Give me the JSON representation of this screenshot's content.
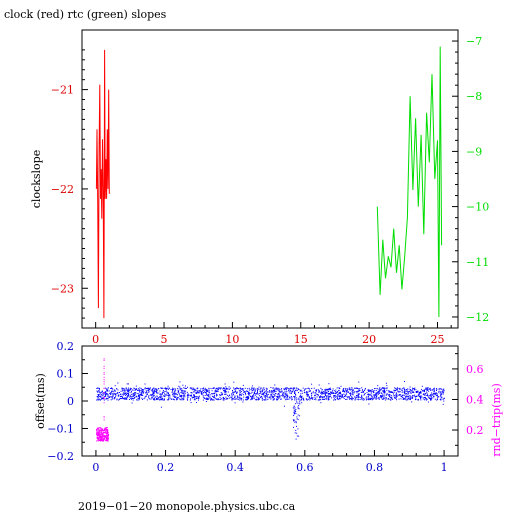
{
  "chart_data": [
    {
      "type": "line",
      "title": "clock (red) rtc (green) slopes",
      "xlabel": "",
      "xlim": [
        -1,
        26.5
      ],
      "x_ticks": [
        0,
        5,
        10,
        15,
        20,
        25
      ],
      "grid": false,
      "y_left": {
        "label": "clockslope",
        "range": [
          -23.4,
          -20.4
        ],
        "ticks": [
          -21,
          -22,
          -23
        ],
        "tick_color": "#dd0000"
      },
      "y_right": {
        "label": "",
        "range": [
          -12.2,
          -6.8
        ],
        "ticks": [
          -7,
          -8,
          -9,
          -10,
          -11,
          -12
        ],
        "tick_color": "#00dd00"
      },
      "series": [
        {
          "axis": "left",
          "color": "#ff0000",
          "x": [
            0.05,
            0.1,
            0.15,
            0.2,
            0.25,
            0.3,
            0.35,
            0.4,
            0.45,
            0.5,
            0.55,
            0.6,
            0.65,
            0.7,
            0.75,
            0.8,
            0.85,
            0.9,
            0.95,
            1.0
          ],
          "y": [
            -22.0,
            -21.4,
            -22.1,
            -23.2,
            -21.6,
            -20.95,
            -22.1,
            -21.8,
            -22.3,
            -21.5,
            -22.0,
            -23.3,
            -20.6,
            -22.1,
            -21.7,
            -22.1,
            -21.4,
            -22.0,
            -21.0,
            -22.05
          ]
        },
        {
          "axis": "right",
          "color": "#00dd00",
          "x": [
            20.6,
            20.8,
            21.0,
            21.2,
            21.4,
            21.6,
            21.8,
            22.0,
            22.2,
            22.4,
            22.6,
            22.8,
            23.0,
            23.2,
            23.4,
            23.6,
            23.8,
            24.0,
            24.2,
            24.4,
            24.6,
            24.8,
            25.0,
            25.1,
            25.2,
            25.3
          ],
          "y": [
            -10.0,
            -11.6,
            -10.6,
            -11.3,
            -10.9,
            -11.1,
            -10.4,
            -11.2,
            -10.7,
            -11.5,
            -10.9,
            -10.2,
            -8.0,
            -9.7,
            -8.4,
            -10.0,
            -8.7,
            -10.5,
            -8.3,
            -9.2,
            -7.6,
            -9.5,
            -8.8,
            -12.0,
            -7.1,
            -10.7
          ]
        }
      ]
    },
    {
      "type": "scatter",
      "xlabel": "",
      "xlim": [
        -0.04,
        1.04
      ],
      "x_ticks": [
        "0",
        "0.2",
        "0.4",
        "0.6",
        "0.8",
        "1"
      ],
      "grid": false,
      "y_left": {
        "label": "offset(ms)",
        "range": [
          -0.2,
          0.2
        ],
        "ticks": [
          "0.2",
          "0.1",
          "0",
          "−0.1",
          "−0.2"
        ],
        "tick_color": "#0000cc"
      },
      "y_right": {
        "label": "rnd−trip(ms)",
        "range": [
          0.03,
          0.75
        ],
        "ticks": [
          "0.6",
          "0.4",
          "0.2"
        ],
        "tick_color": "#ff00ff"
      },
      "series": [
        {
          "axis": "left",
          "color": "#0000ff",
          "x_range": [
            0.0,
            1.0
          ],
          "band": [
            0.005,
            0.05
          ],
          "dip": {
            "x": 0.575,
            "y_min": -0.14
          }
        },
        {
          "axis": "right",
          "color": "#ff00ff",
          "x_range": [
            0.0,
            0.035
          ],
          "band": [
            0.13,
            0.22
          ],
          "spike": {
            "x": 0.022,
            "y_max": 0.72
          }
        }
      ]
    }
  ],
  "footer": "2019−01−20  monopole.physics.ubc.ca"
}
